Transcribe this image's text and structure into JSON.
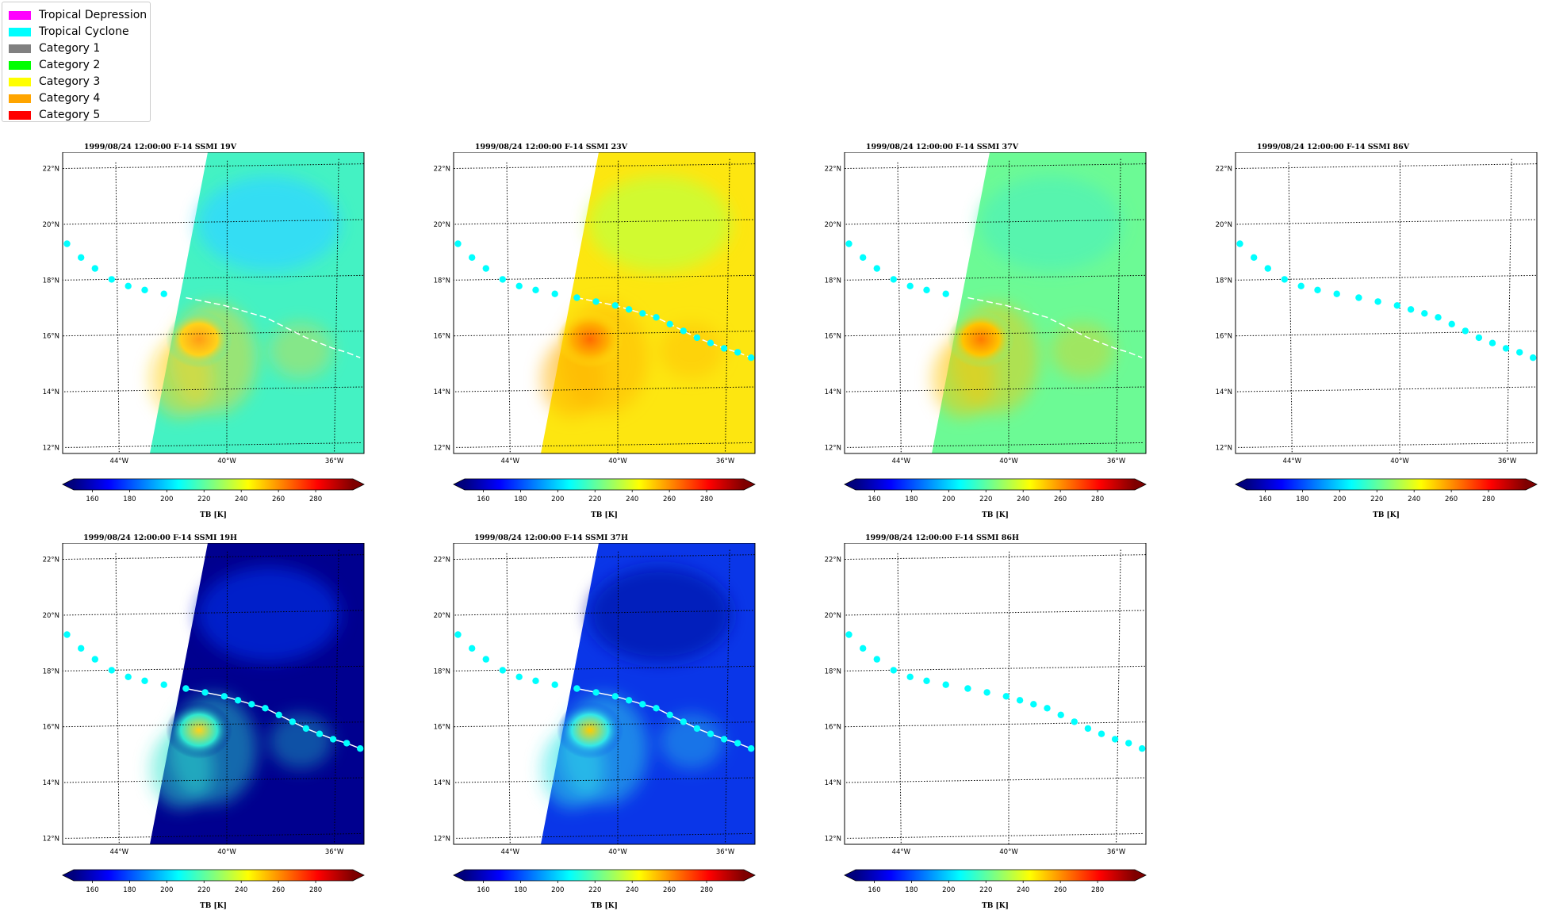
{
  "legend": {
    "items": [
      {
        "label": "Tropical Depression",
        "color": "#ff00ff"
      },
      {
        "label": "Tropical Cyclone",
        "color": "#00ffff"
      },
      {
        "label": "Category 1",
        "color": "#808080"
      },
      {
        "label": "Category 2",
        "color": "#00ff00"
      },
      {
        "label": "Category 3",
        "color": "#ffff00"
      },
      {
        "label": "Category 4",
        "color": "#ffa500"
      },
      {
        "label": "Category 5",
        "color": "#ff0000"
      }
    ]
  },
  "panels": [
    {
      "title": "1999/08/24 12:00:00  F-14 SSMI 19V",
      "channel": "19V",
      "data": true,
      "base": "#44f2c3",
      "hot": "#ff9d15",
      "hot2": "#ffd21a",
      "cool": "#2ed8ff"
    },
    {
      "title": "1999/08/24 12:00:00  F-14 SSMI 23V",
      "channel": "23V",
      "data": true,
      "base": "#fde610",
      "hot": "#ff6a00",
      "hot2": "#ffb000",
      "cool": "#c6ff3a"
    },
    {
      "title": "1999/08/24 12:00:00  F-14 SSMI 37V",
      "channel": "37V",
      "data": true,
      "base": "#6cfa95",
      "hot": "#ff7a00",
      "hot2": "#ffc400",
      "cool": "#52f2b4"
    },
    {
      "title": "1999/08/24 12:00:00  F-14 SSMI 86V",
      "channel": "86V",
      "data": false
    },
    {
      "title": "1999/08/24 12:00:00  F-14 SSMI 19H",
      "channel": "19H",
      "data": true,
      "base": "#00008f",
      "hot": "#ffd21a",
      "hot2": "#2fe8d0",
      "cool": "#0026d8"
    },
    {
      "title": "1999/08/24 12:00:00  F-14 SSMI 37H",
      "channel": "37H",
      "data": true,
      "base": "#0a36e8",
      "hot": "#ffcc00",
      "hot2": "#33e8e8",
      "cool": "#0016b0"
    },
    {
      "title": "1999/08/24 12:00:00  F-14 SSMI 86H",
      "channel": "86H",
      "data": false
    }
  ],
  "chart_data": {
    "type": "scatter",
    "x_range": [
      -46,
      -35
    ],
    "y_range": [
      11.7,
      22.5
    ],
    "x_ticks": [
      "44°W",
      "40°W",
      "36°W"
    ],
    "y_ticks": [
      "12°N",
      "14°N",
      "16°N",
      "18°N",
      "20°N",
      "22°N"
    ],
    "track": {
      "lon": [
        -45.8,
        -45.3,
        -44.8,
        -44.2,
        -43.6,
        -43.0,
        -42.3,
        -41.5,
        -40.8,
        -40.1,
        -39.6,
        -39.1,
        -38.6,
        -38.1,
        -37.6,
        -37.1,
        -36.6,
        -36.1,
        -35.6,
        -35.1
      ],
      "lat": [
        19.3,
        18.8,
        18.4,
        18.0,
        17.75,
        17.6,
        17.45,
        17.3,
        17.15,
        17.0,
        16.85,
        16.7,
        16.55,
        16.3,
        16.05,
        15.8,
        15.6,
        15.4,
        15.25,
        15.05
      ],
      "color": "#00ffff"
    },
    "colorbar": {
      "label": "TB [K]",
      "range": [
        150,
        300
      ],
      "ticks": [
        160,
        180,
        200,
        220,
        240,
        260,
        280
      ],
      "colormap": "jet"
    }
  }
}
